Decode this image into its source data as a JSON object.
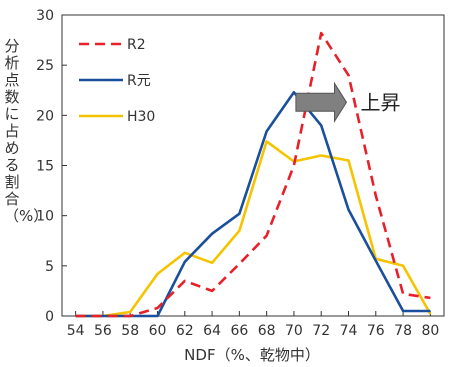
{
  "chart_data": {
    "type": "line",
    "xlabel": "NDF（%、乾物中）",
    "ylabel": "分析点数に占める割合（%）",
    "x": [
      54,
      56,
      58,
      60,
      62,
      64,
      66,
      68,
      70,
      72,
      74,
      76,
      78,
      80
    ],
    "xticks": [
      "54",
      "56",
      "58",
      "60",
      "62",
      "64",
      "66",
      "68",
      "70",
      "72",
      "74",
      "76",
      "78",
      "80"
    ],
    "yticks": [
      "0",
      "5",
      "10",
      "15",
      "20",
      "25",
      "30"
    ],
    "xlim": [
      53,
      81
    ],
    "ylim": [
      0,
      30
    ],
    "grid": false,
    "legend_position": "top-left",
    "series": [
      {
        "name": "R2",
        "color": "#e8202a",
        "dash": true,
        "values": [
          0,
          0,
          0,
          0.8,
          3.5,
          2.5,
          5.2,
          8,
          15,
          28.2,
          24,
          12,
          2.2,
          1.8
        ]
      },
      {
        "name": "R元",
        "color": "#1a4f9c",
        "dash": false,
        "values": [
          0,
          0,
          0,
          0,
          5.4,
          8.2,
          10.2,
          18.4,
          22.3,
          19,
          10.6,
          5.5,
          0.5,
          0.5
        ]
      },
      {
        "name": "H30",
        "color": "#f5c400",
        "dash": false,
        "values": [
          0,
          0,
          0.4,
          4.2,
          6.3,
          5.3,
          8.5,
          17.4,
          15.4,
          16,
          15.5,
          5.7,
          5,
          0.2
        ]
      }
    ],
    "annotation": {
      "text": "上昇",
      "arrow_from_x": 70,
      "arrow_to_x": 74,
      "arrow_y": 21.3,
      "arrow_color": "#808080"
    }
  }
}
